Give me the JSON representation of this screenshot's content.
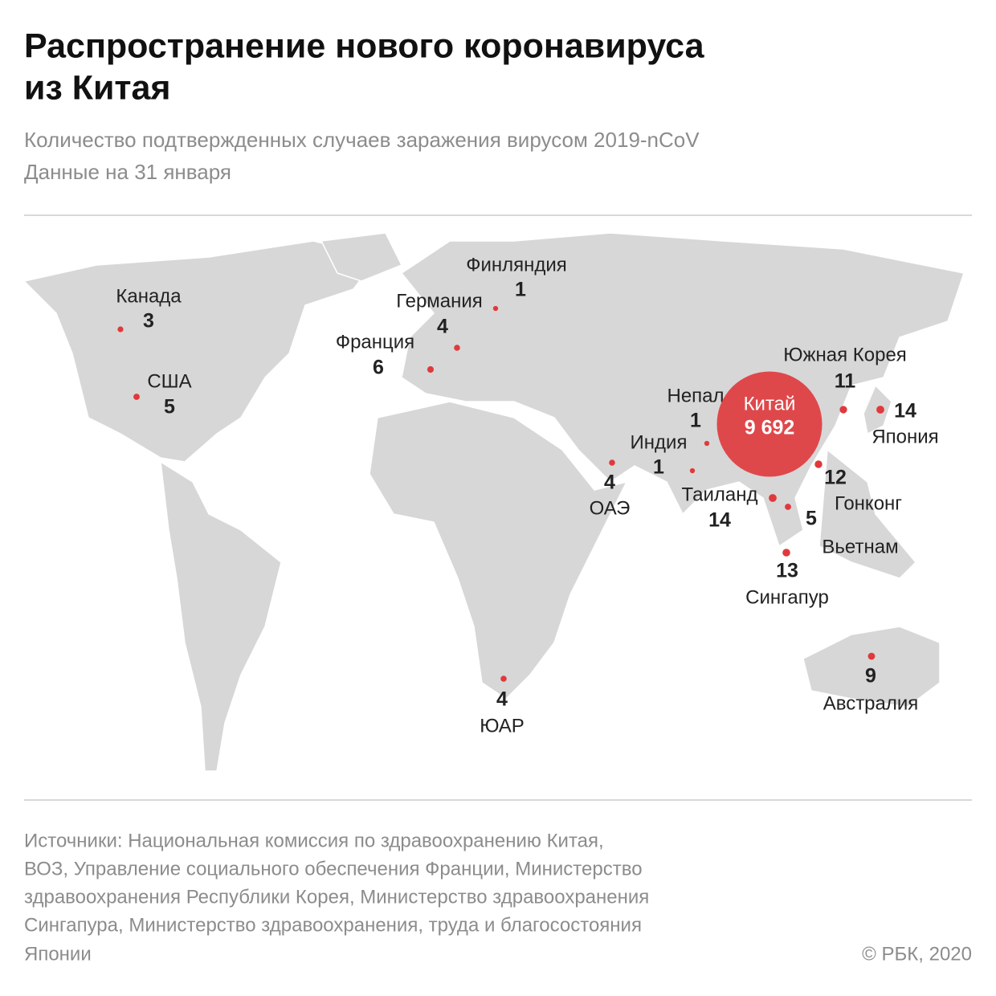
{
  "header": {
    "title": [
      "Распространение нового коронавируса",
      "из Китая"
    ],
    "subtitle": [
      "Количество подтвержденных случаев заражения вирусом 2019-nCoV",
      "Данные на 31 января"
    ]
  },
  "map": {
    "color": "#e0393c",
    "points": [
      {
        "name": "Финляндия",
        "value": 1
      },
      {
        "name": "Германия",
        "value": 4
      },
      {
        "name": "Франция",
        "value": 6
      },
      {
        "name": "Канада",
        "value": 3
      },
      {
        "name": "США",
        "value": 5
      },
      {
        "name": "Непал",
        "value": 1
      },
      {
        "name": "Индия",
        "value": 1
      },
      {
        "name": "ОАЭ",
        "value": 4
      },
      {
        "name": "Китай",
        "value": 9692,
        "value_label": "9 692"
      },
      {
        "name": "Южная Корея",
        "value": 11
      },
      {
        "name": "Япония",
        "value": 14
      },
      {
        "name": "Гонконг",
        "value": 12
      },
      {
        "name": "Вьетнам",
        "value": 5
      },
      {
        "name": "Таиланд",
        "value": 14
      },
      {
        "name": "Сингапур",
        "value": 13
      },
      {
        "name": "Австралия",
        "value": 9
      },
      {
        "name": "ЮАР",
        "value": 4
      }
    ]
  },
  "footer": {
    "sources": [
      "Источники: Национальная комиссия по здравоохранению Китая,",
      "ВОЗ, Управление социального обеспечения Франции, Министерство",
      "здравоохранения Республики Корея, Министерство здравоохранения",
      "Сингапура, Министерство здравоохранения, труда и благосостояния",
      "Японии"
    ],
    "copyright": "© РБК, 2020"
  }
}
